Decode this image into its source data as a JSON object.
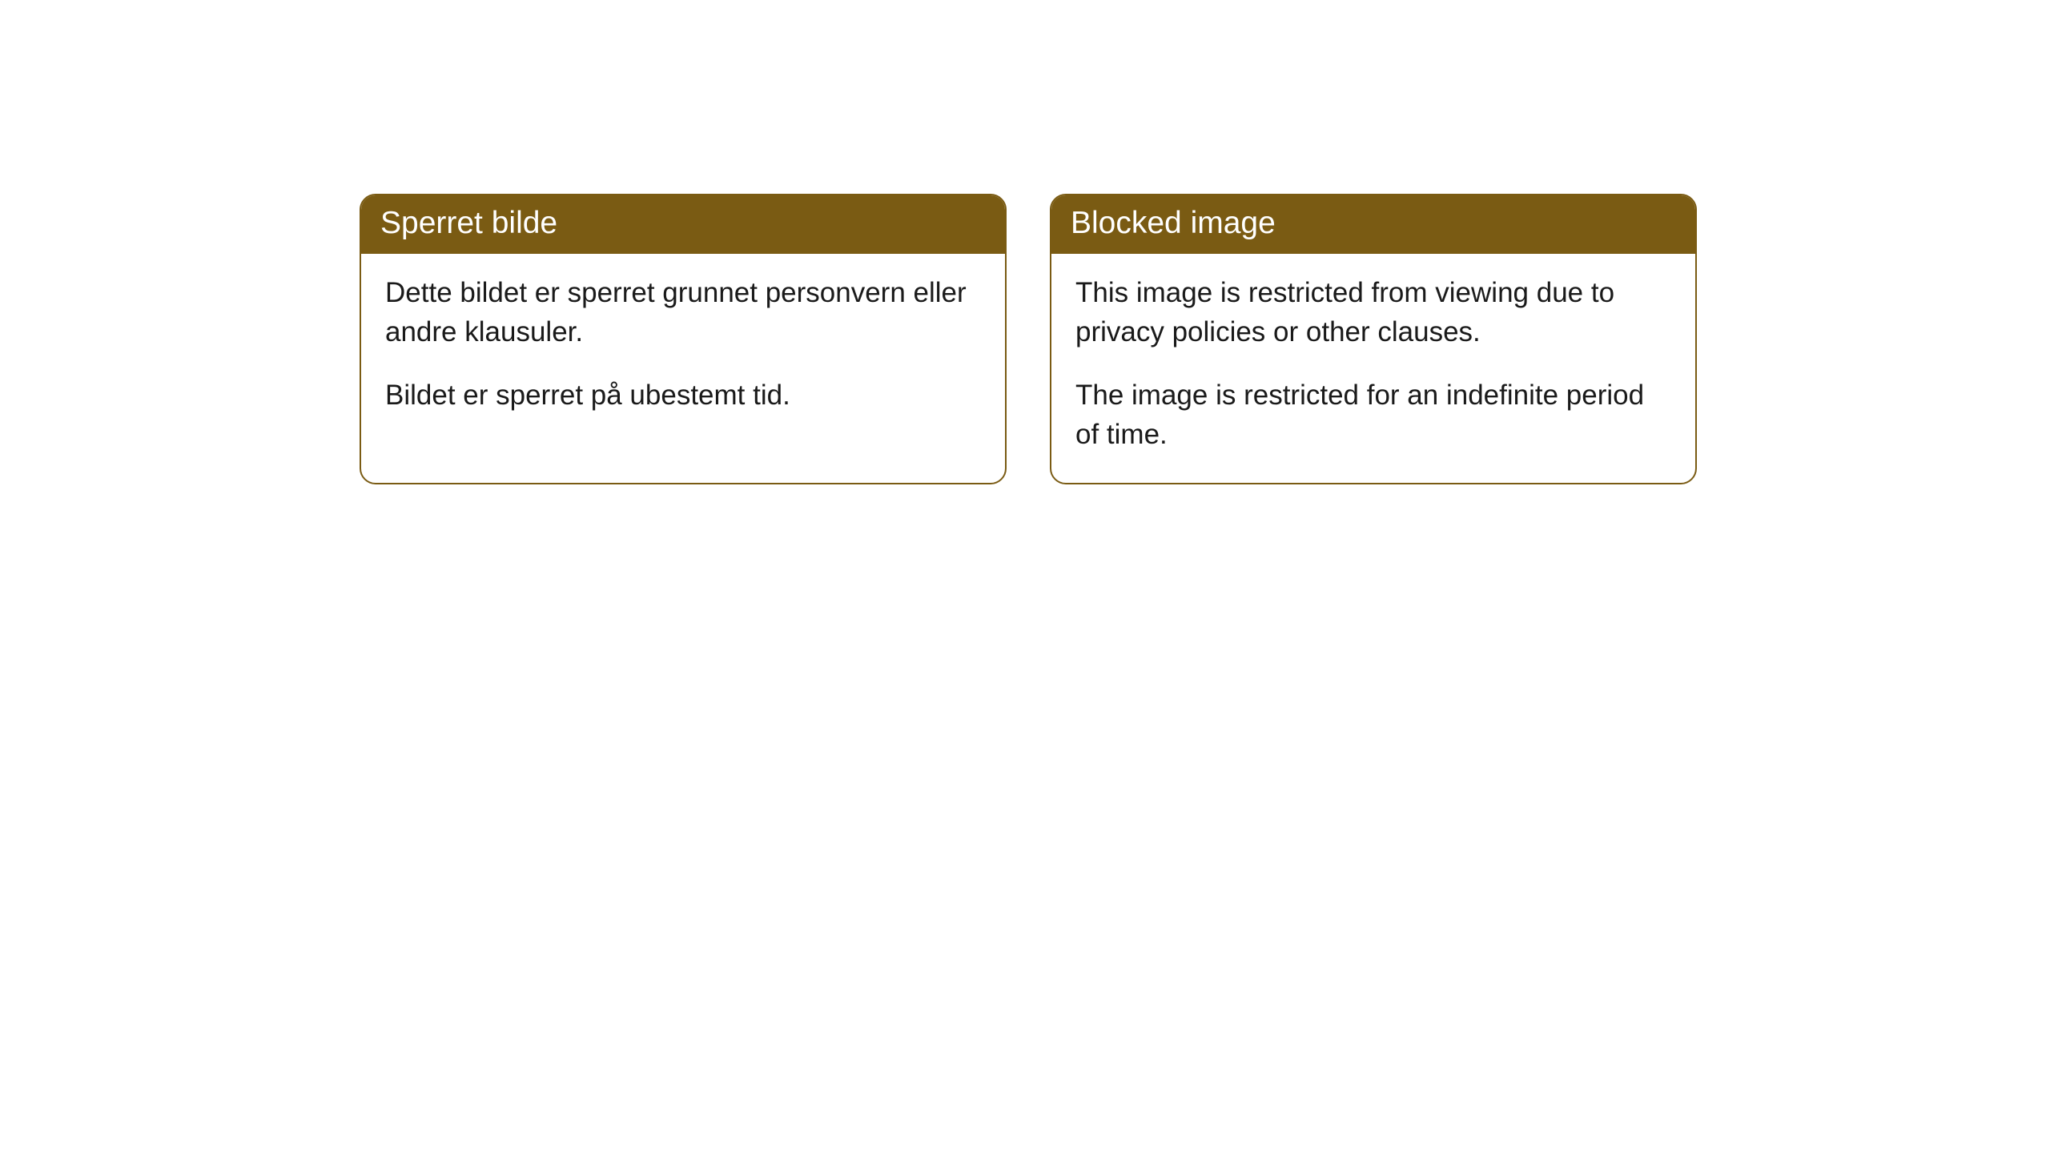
{
  "cards": [
    {
      "title": "Sperret bilde",
      "paragraph1": "Dette bildet er sperret grunnet personvern eller andre klausuler.",
      "paragraph2": "Bildet er sperret på ubestemt tid."
    },
    {
      "title": "Blocked image",
      "paragraph1": "This image is restricted from viewing due to privacy policies or other clauses.",
      "paragraph2": "The image is restricted for an indefinite period of time."
    }
  ],
  "style": {
    "header_background": "#7a5b13",
    "header_text_color": "#ffffff",
    "border_color": "#7a5b13",
    "body_background": "#ffffff",
    "body_text_color": "#1a1a1a",
    "border_radius": 20,
    "header_fontsize": 39,
    "body_fontsize": 35
  }
}
